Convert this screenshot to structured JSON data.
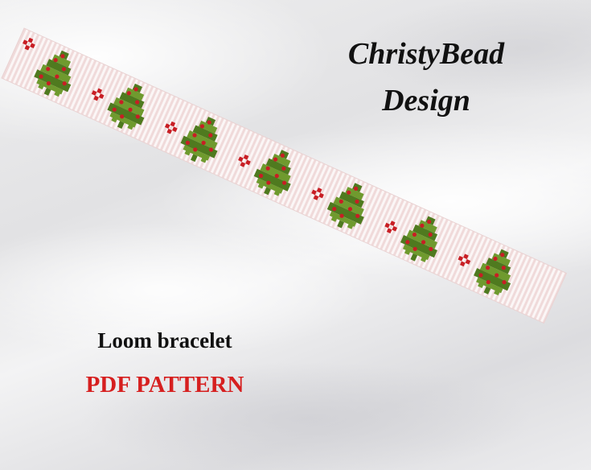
{
  "brand": {
    "line1": "ChristyBead",
    "line2": "Design"
  },
  "product": {
    "type_label": "Loom bracelet",
    "format_label": "PDF PATTERN"
  },
  "colors": {
    "strip_stripe": "#f2dede",
    "strip_base": "#fbf6f6",
    "tree_green": "#6f9a2e",
    "tree_green_dark": "#4f7a1f",
    "berry_red": "#c81e24",
    "format_label_red": "#d61f1f"
  },
  "motif": {
    "tree_count": 7,
    "berry_cluster_count": 7
  }
}
